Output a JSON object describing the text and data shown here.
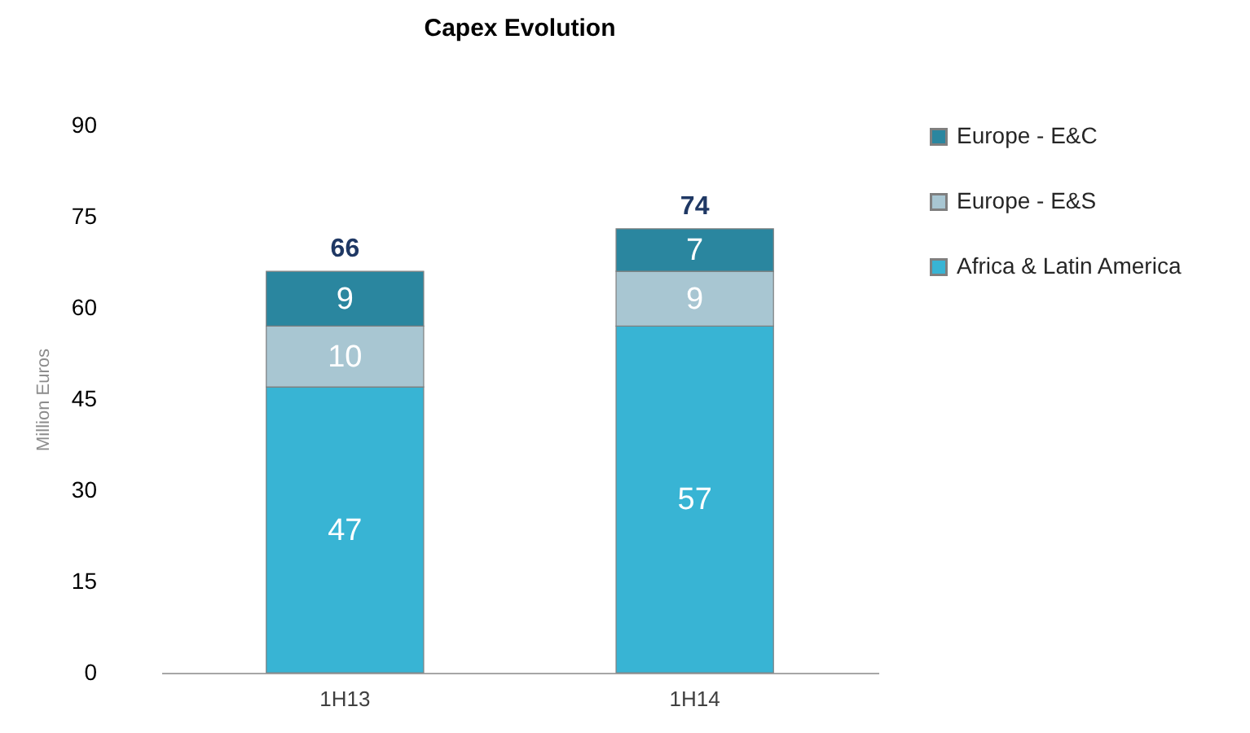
{
  "chart_data": {
    "type": "bar",
    "title": "Capex Evolution",
    "ylabel": "Million Euros",
    "categories": [
      "1H13",
      "1H14"
    ],
    "stacked": true,
    "data_labels": true,
    "legend": "right",
    "grid": false,
    "series": [
      {
        "name": "Africa & Latin America",
        "color": "#38b4d4",
        "values": [
          47,
          57
        ]
      },
      {
        "name": "Europe - E&S",
        "color": "#a8c6d2",
        "values": [
          10,
          9
        ]
      },
      {
        "name": "Europe - E&C",
        "color": "#2a869f",
        "values": [
          9,
          7
        ]
      }
    ],
    "totals": [
      "66",
      "74"
    ],
    "ylim": [
      0,
      90
    ],
    "yticks": [
      0,
      15,
      30,
      45,
      60,
      75,
      90
    ]
  }
}
